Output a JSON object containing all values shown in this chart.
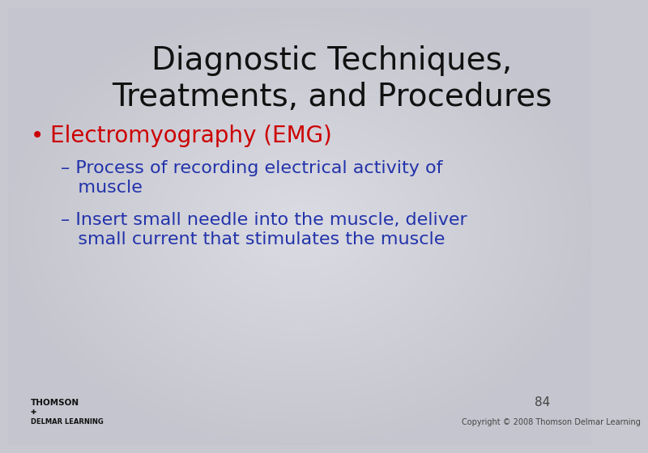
{
  "title_line1": "Diagnostic Techniques,",
  "title_line2": "Treatments, and Procedures",
  "title_color": "#111111",
  "title_fontsize": 28,
  "bullet_char": "•",
  "bullet_text": "Electromyography (EMG)",
  "bullet_color": "#cc0000",
  "bullet_fontsize": 20,
  "sub_bullet_color": "#2233aa",
  "sub_bullet_fontsize": 16,
  "sub_bullet1_line1": "– Process of recording electrical activity of",
  "sub_bullet1_line2": "   muscle",
  "sub_bullet2_line1": "– Insert small needle into the muscle, deliver",
  "sub_bullet2_line2": "   small current that stimulates the muscle",
  "background_color": "#c8c8d0",
  "page_number": "84",
  "copyright_text": "Copyright © 2008 Thomson Delmar Learning",
  "footer_color": "#444444",
  "page_number_fontsize": 11,
  "copyright_fontsize": 7
}
